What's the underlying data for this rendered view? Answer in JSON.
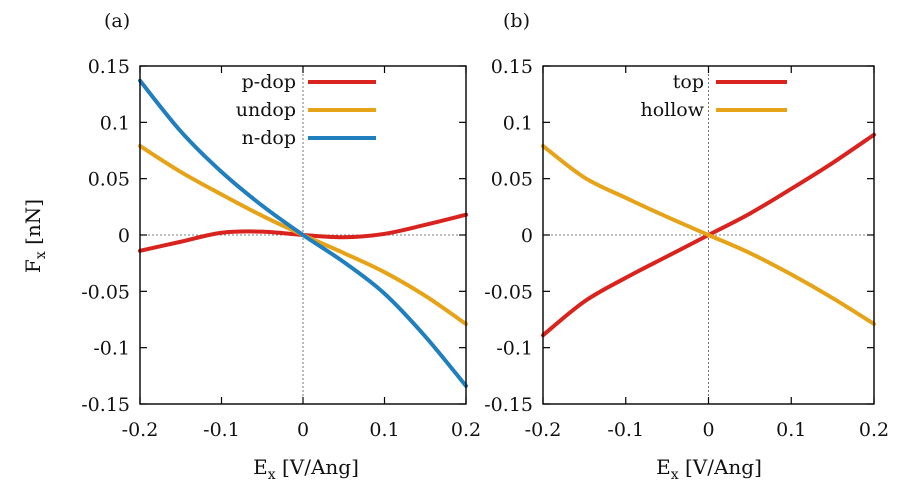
{
  "chart_data": [
    {
      "type": "line",
      "panel_label": "(a)",
      "xlabel": "E",
      "xlabel_sub": "x",
      "xlabel_unit": " [V/Ang]",
      "ylabel": "F",
      "ylabel_sub": "x",
      "ylabel_unit": " [nN]",
      "xlim": [
        -0.2,
        0.2
      ],
      "ylim": [
        -0.15,
        0.15
      ],
      "x_ticks": [
        "-0.2",
        "-0.1",
        "0",
        "0.1",
        "0.2"
      ],
      "y_ticks": [
        "0.15",
        "0.1",
        "0.05",
        "0",
        "-0.05",
        "-0.1",
        "-0.15"
      ],
      "zero_lines": true,
      "legend_position": "top-right",
      "x": [
        -0.2,
        -0.15,
        -0.1,
        -0.05,
        0,
        0.05,
        0.1,
        0.15,
        0.2
      ],
      "series": [
        {
          "name": "p-dop",
          "color": "#d9231e",
          "values": [
            -0.014,
            -0.006,
            0.002,
            0.003,
            0.0,
            -0.002,
            0.001,
            0.009,
            0.018
          ]
        },
        {
          "name": "undop",
          "color": "#e6a317",
          "values": [
            0.079,
            0.056,
            0.036,
            0.017,
            0.0,
            -0.016,
            -0.033,
            -0.054,
            -0.079
          ]
        },
        {
          "name": "n-dop",
          "color": "#1f7fbf",
          "values": [
            0.137,
            0.092,
            0.056,
            0.026,
            0.0,
            -0.024,
            -0.052,
            -0.09,
            -0.134
          ]
        }
      ]
    },
    {
      "type": "line",
      "panel_label": "(b)",
      "xlabel": "E",
      "xlabel_sub": "x",
      "xlabel_unit": " [V/Ang]",
      "xlim": [
        -0.2,
        0.2
      ],
      "ylim": [
        -0.15,
        0.15
      ],
      "x_ticks": [
        "-0.2",
        "-0.1",
        "0",
        "0.1",
        "0.2"
      ],
      "y_ticks": [
        "0.15",
        "0.1",
        "0.05",
        "0",
        "-0.05",
        "-0.1",
        "-0.15"
      ],
      "zero_lines": true,
      "legend_position": "top-right",
      "x": [
        -0.2,
        -0.15,
        -0.1,
        -0.05,
        0,
        0.05,
        0.1,
        0.15,
        0.2
      ],
      "series": [
        {
          "name": "top",
          "color": "#d9231e",
          "values": [
            -0.089,
            -0.059,
            -0.038,
            -0.019,
            0.0,
            0.019,
            0.041,
            0.064,
            0.089
          ]
        },
        {
          "name": "hollow",
          "color": "#e6a317",
          "values": [
            0.079,
            0.051,
            0.033,
            0.016,
            0.0,
            -0.016,
            -0.035,
            -0.056,
            -0.079
          ]
        }
      ]
    }
  ]
}
